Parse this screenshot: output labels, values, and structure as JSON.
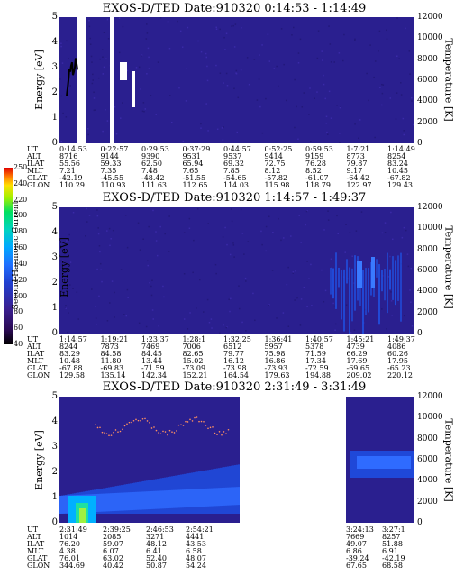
{
  "colorbar": {
    "label": "Second Harmonic Current",
    "ticks": [
      "40",
      "60",
      "80",
      "100",
      "120",
      "140",
      "160",
      "180",
      "200",
      "220",
      "240",
      "250"
    ]
  },
  "row_labels": [
    "UT",
    "ALT",
    "ILAT",
    "MLT",
    "GLAT",
    "GLON"
  ],
  "chart_data": [
    {
      "type": "heatmap",
      "title": "EXOS-D/TED   Date:910320  0:14:53 - 1:14:49",
      "ylabel": "Energy [eV]",
      "y2label": "Temperature [K]",
      "ylim": [
        0,
        5
      ],
      "y2lim": [
        0,
        12000
      ],
      "yticks": [
        "0",
        "1",
        "2",
        "3",
        "4",
        "5"
      ],
      "y2ticks": [
        "0",
        "2000",
        "4000",
        "6000",
        "8000",
        "10000",
        "12000"
      ],
      "columns": [
        [
          "0:14:53",
          "8716",
          "55.56",
          "7.21",
          "-42.19",
          "110.29"
        ],
        [
          "0:22:57",
          "9144",
          "59.33",
          "7.35",
          "-45.55",
          "110.93"
        ],
        [
          "0:29:53",
          "9390",
          "62.50",
          "7.48",
          "-48.42",
          "111.63"
        ],
        [
          "0:37:29",
          "9531",
          "65.94",
          "7.65",
          "-51.55",
          "112.65"
        ],
        [
          "0:44:57",
          "9537",
          "69.32",
          "7.85",
          "-54.65",
          "114.03"
        ],
        [
          "0:52:25",
          "9414",
          "72.75",
          "8.12",
          "-57.82",
          "115.98"
        ],
        [
          "0:59:53",
          "9159",
          "76.28",
          "8.52",
          "-61.07",
          "118.79"
        ],
        [
          "1:7:21",
          "8773",
          "79.87",
          "9.17",
          "-64.42",
          "122.97"
        ],
        [
          "1:14:49",
          "8254",
          "83.24",
          "10.45",
          "-67.82",
          "129.43"
        ]
      ],
      "data_gaps_ut": [
        [
          "0:18:10",
          "0:19:20"
        ],
        [
          "0:22:00",
          "0:22:50"
        ],
        [
          "0:24:30",
          "0:25:10"
        ]
      ],
      "temperature_trace": {
        "x_minutes": [
          0,
          1,
          2,
          3,
          4,
          5,
          6,
          7,
          8,
          9,
          10,
          11,
          12
        ],
        "temperature_k": [
          4500,
          5200,
          6000,
          7100,
          6800,
          7400,
          7700,
          6500,
          6800,
          7200,
          8100,
          7600,
          7000
        ]
      }
    },
    {
      "type": "heatmap",
      "title": "EXOS-D/TED   Date:910320  1:14:57 - 1:49:37",
      "ylabel": "Energy [eV]",
      "y2label": "Temperature [K]",
      "ylim": [
        0,
        5
      ],
      "y2lim": [
        0,
        12000
      ],
      "yticks": [
        "0",
        "1",
        "2",
        "3",
        "4",
        "5"
      ],
      "y2ticks": [
        "0",
        "2000",
        "4000",
        "6000",
        "8000",
        "10000",
        "12000"
      ],
      "columns": [
        [
          "1:14:57",
          "8244",
          "83.29",
          "10.48",
          "-67.88",
          "129.58"
        ],
        [
          "1:19:21",
          "7873",
          "84.58",
          "11.80",
          "-69.83",
          "135.14"
        ],
        [
          "1:23:37",
          "7469",
          "84.45",
          "13.44",
          "-71.59",
          "142.34"
        ],
        [
          "1:28:1",
          "7006",
          "82.65",
          "15.02",
          "-73.09",
          "152.21"
        ],
        [
          "1:32:25",
          "6512",
          "79.77",
          "16.12",
          "-73.98",
          "164.54"
        ],
        [
          "1:36:41",
          "5957",
          "75.98",
          "16.86",
          "-73.93",
          "179.63"
        ],
        [
          "1:40:57",
          "5378",
          "71.59",
          "17.34",
          "-72.59",
          "194.88"
        ],
        [
          "1:45:21",
          "4739",
          "66.29",
          "17.69",
          "-69.65",
          "209.02"
        ],
        [
          "1:49:37",
          "4086",
          "60.26",
          "17.95",
          "-65.23",
          "220.12"
        ]
      ]
    },
    {
      "type": "heatmap",
      "title": "EXOS-D/TED   Date:910320  2:31:49 - 3:31:49",
      "ylabel": "Energy [eV]",
      "y2label": "Temperature [K]",
      "ylim": [
        0,
        5
      ],
      "y2lim": [
        0,
        12000
      ],
      "yticks": [
        "0",
        "1",
        "2",
        "3",
        "4",
        "5"
      ],
      "y2ticks": [
        "0",
        "2000",
        "4000",
        "6000",
        "8000",
        "10000",
        "12000"
      ],
      "columns": [
        [
          "2:31:49",
          "1014",
          "76.20",
          "4.38",
          "76.01",
          "344.69"
        ],
        [
          "2:39:25",
          "2085",
          "59.07",
          "6.07",
          "63.02",
          "40.42"
        ],
        [
          "2:46:53",
          "3271",
          "48.12",
          "6.41",
          "52.40",
          "50.87"
        ],
        [
          "2:54:21",
          "4441",
          "43.53",
          "6.58",
          "48.07",
          "54.24"
        ],
        [
          "3:24:13",
          "7669",
          "49.07",
          "6.86",
          "-39.24",
          "67.65"
        ],
        [
          "3:27:1",
          "8257",
          "51.88",
          "6.91",
          "-42.19",
          "68.58"
        ]
      ],
      "data_gap_ut": [
        "2:56:00",
        "3:20:00"
      ]
    }
  ]
}
